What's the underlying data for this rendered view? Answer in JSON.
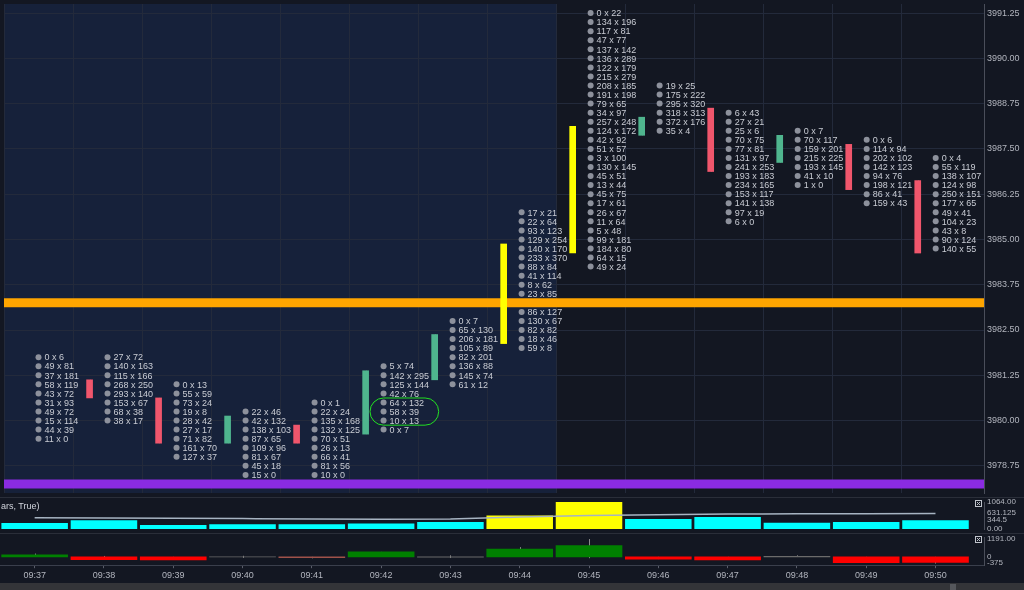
{
  "chart_data": [
    {
      "type": "candlestick",
      "categories": [
        "09:37",
        "09:38",
        "09:39",
        "09:40",
        "09:41",
        "09:42",
        "09:43",
        "09:44",
        "09:45",
        "09:46",
        "09:47",
        "09:48",
        "09:49",
        "09:50"
      ],
      "ohlc": [
        null,
        [
          3981.125,
          3981.125,
          3980.625,
          3980.625
        ],
        [
          3980.625,
          3980.625,
          3979.375,
          3979.375
        ],
        [
          3979.375,
          3980.125,
          3979.375,
          3980.125
        ],
        [
          3979.875,
          3979.875,
          3979.375,
          3979.375
        ],
        [
          3979.625,
          3981.375,
          3979.625,
          3981.375
        ],
        [
          3981.125,
          3982.375,
          3981.125,
          3982.375
        ],
        [
          3982.125,
          3984.875,
          3982.125,
          3984.875
        ],
        [
          3984.625,
          3988.125,
          3984.625,
          3988.125
        ],
        [
          3987.875,
          3988.375,
          3987.875,
          3988.375
        ],
        [
          3988.625,
          3988.625,
          3986.875,
          3986.875
        ],
        [
          3987.125,
          3987.875,
          3987.125,
          3987.875
        ],
        [
          3987.625,
          3987.625,
          3986.375,
          3986.375
        ],
        [
          3986.625,
          3986.625,
          3984.625,
          3984.625
        ]
      ],
      "colors": [
        null,
        "#f0566c",
        "#f0566c",
        "#4fb58e",
        "#f0566c",
        "#4fb58e",
        "#4fb58e",
        "#ffff00",
        "#ffff00",
        "#4fb58e",
        "#f0566c",
        "#4fb58e",
        "#f0566c",
        "#f0566c"
      ],
      "series": [
        {
          "type": "scatter",
          "color": "#8d919c",
          "x": [
            "09:37",
            "09:37",
            "09:37",
            "09:37",
            "09:37",
            "09:37",
            "09:37",
            "09:37",
            "09:37",
            "09:37",
            "09:38",
            "09:38",
            "09:38",
            "09:38",
            "09:38",
            "09:38",
            "09:38",
            "09:38",
            "09:39",
            "09:39",
            "09:39",
            "09:39",
            "09:39",
            "09:39",
            "09:39",
            "09:39",
            "09:39",
            "09:40",
            "09:40",
            "09:40",
            "09:40",
            "09:40",
            "09:40",
            "09:40",
            "09:40",
            "09:41",
            "09:41",
            "09:41",
            "09:41",
            "09:41",
            "09:41",
            "09:41",
            "09:41",
            "09:41",
            "09:42",
            "09:42",
            "09:42",
            "09:42",
            "09:42",
            "09:42",
            "09:42",
            "09:42",
            "09:43",
            "09:43",
            "09:43",
            "09:43",
            "09:43",
            "09:43",
            "09:43",
            "09:43",
            "09:44",
            "09:44",
            "09:44",
            "09:44",
            "09:44",
            "09:44",
            "09:44",
            "09:44",
            "09:44",
            "09:44",
            "09:44",
            "09:44",
            "09:44",
            "09:44",
            "09:44",
            "09:45",
            "09:45",
            "09:45",
            "09:45",
            "09:45",
            "09:45",
            "09:45",
            "09:45",
            "09:45",
            "09:45",
            "09:45",
            "09:45",
            "09:45",
            "09:45",
            "09:45",
            "09:45",
            "09:45",
            "09:45",
            "09:45",
            "09:45",
            "09:45",
            "09:45",
            "09:45",
            "09:45",
            "09:45",
            "09:45",
            "09:45",
            "09:45",
            "09:45",
            "09:46",
            "09:46",
            "09:46",
            "09:46",
            "09:46",
            "09:46",
            "09:47",
            "09:47",
            "09:47",
            "09:47",
            "09:47",
            "09:47",
            "09:47",
            "09:47",
            "09:47",
            "09:47",
            "09:47",
            "09:47",
            "09:47",
            "09:48",
            "09:48",
            "09:48",
            "09:48",
            "09:48",
            "09:48",
            "09:48",
            "09:49",
            "09:49",
            "09:49",
            "09:49",
            "09:49",
            "09:49",
            "09:49",
            "09:49",
            "09:50",
            "09:50",
            "09:50",
            "09:50",
            "09:50",
            "09:50",
            "09:50",
            "09:50",
            "09:50",
            "09:50",
            "09:50"
          ],
          "values": [
            3981.75,
            3981.5,
            3981.25,
            3981,
            3980.75,
            3980.5,
            3980.25,
            3980,
            3979.75,
            3979.5,
            3981.75,
            3981.5,
            3981.25,
            3981,
            3980.75,
            3980.5,
            3980.25,
            3980,
            3981,
            3980.75,
            3980.5,
            3980.25,
            3980,
            3979.75,
            3979.5,
            3979.25,
            3979,
            3980.25,
            3980,
            3979.75,
            3979.5,
            3979.25,
            3979,
            3978.75,
            3978.5,
            3980.5,
            3980.25,
            3980,
            3979.75,
            3979.5,
            3979.25,
            3979,
            3978.75,
            3978.5,
            3981.5,
            3981.25,
            3981,
            3980.75,
            3980.5,
            3980.25,
            3980,
            3979.75,
            3982.75,
            3982.5,
            3982.25,
            3982,
            3981.75,
            3981.5,
            3981.25,
            3981,
            3985.75,
            3985.5,
            3985.25,
            3985,
            3984.75,
            3984.5,
            3984.25,
            3984,
            3983.75,
            3983.5,
            3983,
            3982.75,
            3982.5,
            3982.25,
            3982,
            3991.25,
            3991,
            3990.75,
            3990.5,
            3990.25,
            3990,
            3989.75,
            3989.5,
            3989.25,
            3989,
            3988.75,
            3988.5,
            3988.25,
            3988,
            3987.75,
            3987.5,
            3987.25,
            3987,
            3986.75,
            3986.5,
            3986.25,
            3986,
            3985.75,
            3985.5,
            3985.25,
            3985,
            3984.75,
            3984.5,
            3984.25,
            3989.25,
            3989,
            3988.75,
            3988.5,
            3988.25,
            3988,
            3988.5,
            3988.25,
            3988,
            3987.75,
            3987.5,
            3987.25,
            3987,
            3986.75,
            3986.5,
            3986.25,
            3986,
            3985.75,
            3985.5,
            3988,
            3987.75,
            3987.5,
            3987.25,
            3987,
            3986.75,
            3986.5,
            3987.75,
            3987.5,
            3987.25,
            3987,
            3986.75,
            3986.5,
            3986.25,
            3986,
            3987.25,
            3987,
            3986.75,
            3986.5,
            3986.25,
            3986,
            3985.75,
            3985.5,
            3985.25,
            3985,
            3984.75
          ],
          "value_labels": [
            "0 x 6",
            "49 x 81",
            "37 x 181",
            "58 x 119",
            "43 x 72",
            "31 x 93",
            "49 x 72",
            "15 x 114",
            "44 x 39",
            "11 x 0",
            "27 x 72",
            "140 x 163",
            "115 x 166",
            "268 x 250",
            "293 x 140",
            "153 x 67",
            "68 x 38",
            "38 x 17",
            "0 x 13",
            "55 x 59",
            "73 x 24",
            "19 x 8",
            "28 x 42",
            "27 x 17",
            "71 x 82",
            "161 x 70",
            "127 x 37",
            "22 x 46",
            "42 x 132",
            "138 x 103",
            "87 x 65",
            "109 x 96",
            "81 x 67",
            "45 x 18",
            "15 x 0",
            "0 x 1",
            "22 x 24",
            "135 x 168",
            "132 x 125",
            "70 x 51",
            "26 x 13",
            "66 x 41",
            "81 x 56",
            "10 x 0",
            "5 x 74",
            "142 x 295",
            "125 x 144",
            "42 x 76",
            "64 x 132",
            "58 x 39",
            "10 x 13",
            "0 x 7",
            "0 x 7",
            "65 x 130",
            "206 x 181",
            "105 x 89",
            "82 x 201",
            "136 x 88",
            "145 x 74",
            "61 x 12",
            "17 x 21",
            "22 x 64",
            "93 x 123",
            "129 x 254",
            "140 x 170",
            "233 x 370",
            "88 x 84",
            "41 x 114",
            "8 x 62",
            "23 x 85",
            "86 x 127",
            "130 x 67",
            "82 x 82",
            "18 x 46",
            "59 x 8",
            "0 x 22",
            "134 x 196",
            "117 x 81",
            "47 x 77",
            "137 x 142",
            "136 x 289",
            "122 x 179",
            "215 x 279",
            "208 x 185",
            "191 x 198",
            "79 x 65",
            "34 x 97",
            "257 x 248",
            "124 x 172",
            "42 x 92",
            "51 x 57",
            "3 x 100",
            "130 x 145",
            "45 x 51",
            "13 x 44",
            "45 x 75",
            "17 x 61",
            "26 x 67",
            "11 x 64",
            "5 x 48",
            "99 x 181",
            "184 x 80",
            "64 x 15",
            "49 x 24",
            "19 x 25",
            "175 x 222",
            "295 x 320",
            "318 x 313",
            "372 x 176",
            "35 x 4",
            "6 x 43",
            "27 x 21",
            "25 x 6",
            "70 x 75",
            "77 x 81",
            "131 x 97",
            "241 x 253",
            "193 x 183",
            "234 x 165",
            "153 x 117",
            "141 x 138",
            "97 x 19",
            "6 x 0",
            "0 x 7",
            "70 x 117",
            "159 x 201",
            "215 x 225",
            "193 x 145",
            "41 x 10",
            "1 x 0",
            "0 x 6",
            "114 x 94",
            "202 x 102",
            "142 x 123",
            "94 x 76",
            "198 x 121",
            "86 x 41",
            "159 x 43",
            "0 x 4",
            "55 x 119",
            "138 x 107",
            "124 x 98",
            "250 x 151",
            "177 x 65",
            "49 x 41",
            "104 x 23",
            "43 x 8",
            "90 x 124",
            "140 x 55"
          ]
        }
      ],
      "marker": "circle",
      "ylim": [
        3978,
        3991.5
      ],
      "yticks": [
        3978.75,
        {
          "value": 3980,
          "label": "3980.00"
        },
        3981.25,
        {
          "value": 3982.5,
          "label": "3982.50"
        },
        3983.75,
        {
          "value": 3985,
          "label": "3985.00"
        },
        3986.25,
        {
          "value": 3987.5,
          "label": "3987.50"
        },
        3988.75,
        {
          "value": 3990,
          "label": "3990.00"
        },
        3991.25
      ],
      "grid": true,
      "tick_labels": "y",
      "ref_lines": [
        {
          "axis": "y",
          "value": 3983.25,
          "color": "#ffa500"
        },
        {
          "axis": "y",
          "value": 3978.25,
          "color": "#8a2be2"
        }
      ],
      "bands": [
        {
          "axis": "x",
          "from": "09:37",
          "to": "09:44",
          "color": "#16213a"
        }
      ]
    },
    {
      "type": "bar",
      "title": "ars, True)",
      "categories": [
        "09:37",
        "09:38",
        "09:39",
        "09:40",
        "09:41",
        "09:42",
        "09:43",
        "09:44",
        "09:45",
        "09:46",
        "09:47",
        "09:48",
        "09:49",
        "09:50"
      ],
      "series": [
        {
          "type": "bar",
          "colors": [
            "#00ffff",
            "#00ffff",
            "#00ffff",
            "#00ffff",
            "#00ffff",
            "#00ffff",
            "#00ffff",
            "#ffff00",
            "#ffff00",
            "#00ffff",
            "#00ffff",
            "#00ffff",
            "#00ffff",
            "#00ffff"
          ],
          "values": [
            240,
            340,
            160,
            190,
            190,
            220,
            280,
            530,
            1064,
            390,
            470,
            250,
            280,
            344.5
          ]
        },
        {
          "type": "line",
          "color": "#a7b4c2",
          "values": [
            443,
            430,
            420,
            410,
            390,
            380,
            390,
            470,
            530,
            560,
            590,
            600,
            600,
            610
          ]
        }
      ],
      "ylim": [
        0,
        1064
      ],
      "yticks": [
        {
          "value": 0,
          "label": "0.00"
        },
        344.5,
        631.125,
        {
          "value": 1064,
          "label": "1064.00"
        }
      ],
      "tick_labels": "y"
    },
    {
      "type": "candlestick",
      "categories": [
        "09:37",
        "09:38",
        "09:39",
        "09:40",
        "09:41",
        "09:42",
        "09:43",
        "09:44",
        "09:45",
        "09:46",
        "09:47",
        "09:48",
        "09:49",
        "09:50"
      ],
      "ohlc": [
        [
          0,
          220,
          0,
          140
        ],
        [
          0,
          60,
          -190,
          -190
        ],
        [
          0,
          0,
          -210,
          -210
        ],
        [
          0,
          70,
          -70,
          -10
        ],
        [
          0,
          0,
          -100,
          -60
        ],
        [
          0,
          330,
          0,
          330
        ],
        [
          0,
          100,
          -80,
          -20
        ],
        [
          0,
          650,
          0,
          520
        ],
        [
          0,
          1191,
          -90,
          750
        ],
        [
          0,
          0,
          -150,
          -150
        ],
        [
          0,
          0,
          -200,
          -200
        ],
        [
          0,
          100,
          0,
          30
        ],
        [
          0,
          0,
          -390,
          -390
        ],
        [
          0,
          0,
          -450,
          -375
        ]
      ],
      "colors": [
        "#008000",
        "#ff0000",
        "#ff0000",
        "#6b6b6b",
        "#a0524a",
        "#008000",
        "#6b6b6b",
        "#008000",
        "#008000",
        "#ff0000",
        "#ff0000",
        "#6b6b6b",
        "#ff0000",
        "#ff0000"
      ],
      "ylim": [
        -560,
        1330
      ],
      "yticks": [
        -375,
        0,
        {
          "value": 1191,
          "label": "1191.00"
        }
      ]
    }
  ]
}
